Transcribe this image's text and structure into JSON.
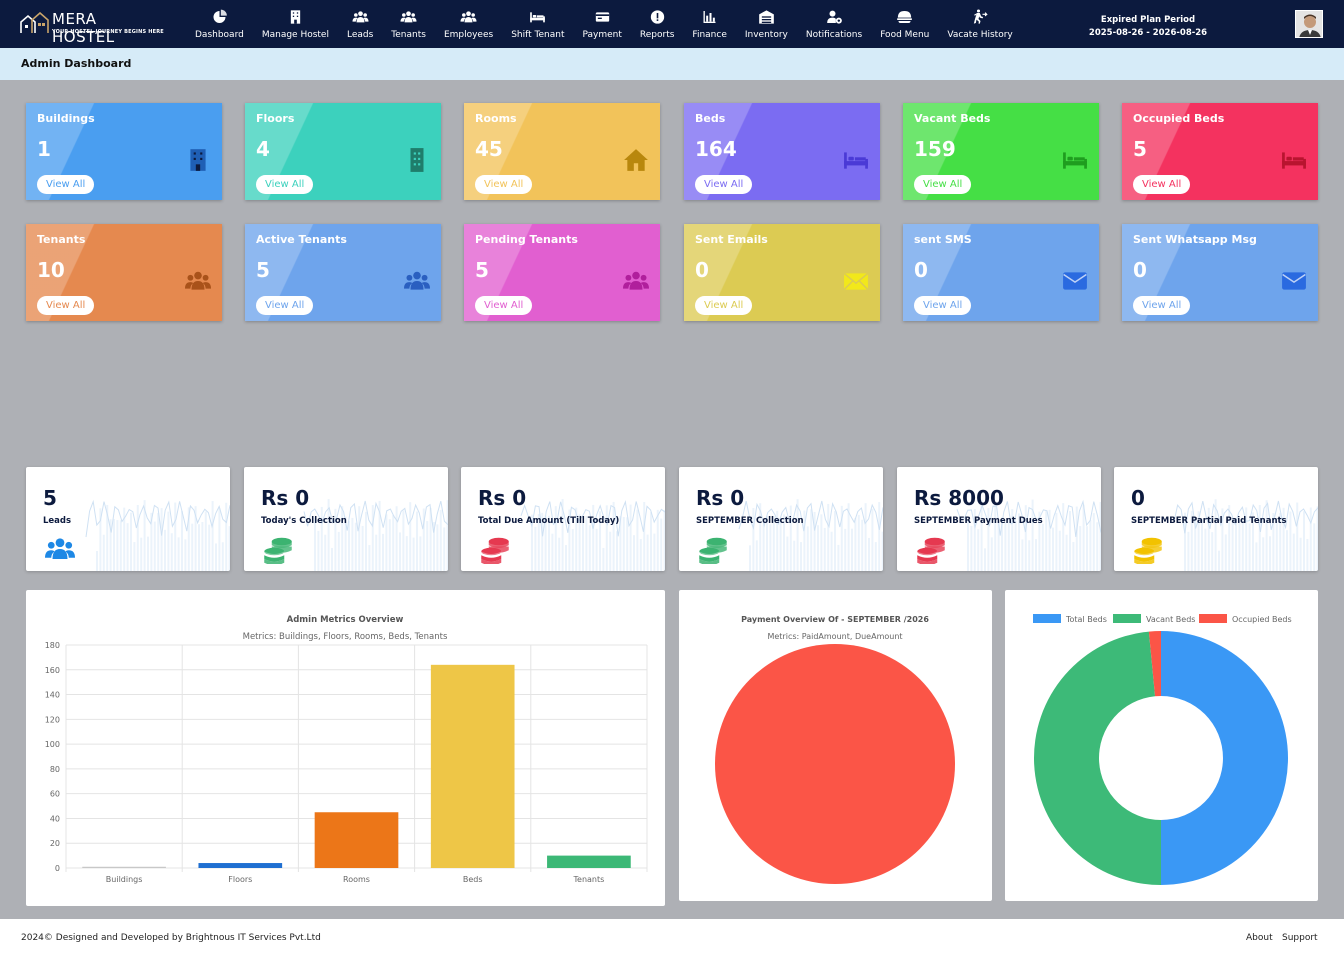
{
  "brand": {
    "name": "MERA HOSTEL",
    "tagline": "YOUR HOSTEL JOURNEY BEGINS HERE"
  },
  "nav": [
    {
      "label": "Dashboard",
      "icon": "dashboard-icon"
    },
    {
      "label": "Manage Hostel",
      "icon": "building-icon"
    },
    {
      "label": "Leads",
      "icon": "users-icon"
    },
    {
      "label": "Tenants",
      "icon": "users-icon"
    },
    {
      "label": "Employees",
      "icon": "users-icon"
    },
    {
      "label": "Shift Tenant",
      "icon": "bed-icon"
    },
    {
      "label": "Payment",
      "icon": "card-icon"
    },
    {
      "label": "Reports",
      "icon": "alert-icon"
    },
    {
      "label": "Finance",
      "icon": "bar-icon"
    },
    {
      "label": "Inventory",
      "icon": "warehouse-icon"
    },
    {
      "label": "Notifications",
      "icon": "user-gear-icon"
    },
    {
      "label": "Food Menu",
      "icon": "food-icon"
    },
    {
      "label": "Vacate History",
      "icon": "exit-icon"
    }
  ],
  "plan": {
    "label": "Expired Plan Period",
    "range": "2025-08-26 - 2026-08-26"
  },
  "page_title": "Admin Dashboard",
  "cards": [
    {
      "title": "Buildings",
      "value": "1",
      "button": "View All",
      "color": "#4a9ef0",
      "icon": "building-icon",
      "icon_color": "#1f5fb5"
    },
    {
      "title": "Floors",
      "value": "4",
      "button": "View All",
      "color": "#3cd1bd",
      "icon": "floor-icon",
      "icon_color": "#1f7d6b"
    },
    {
      "title": "Rooms",
      "value": "45",
      "button": "View All",
      "color": "#f2c35a",
      "icon": "home-icon",
      "icon_color": "#b8870d"
    },
    {
      "title": "Beds",
      "value": "164",
      "button": "View All",
      "color": "#7b6cf2",
      "icon": "bed-icon",
      "icon_color": "#4a3ad6"
    },
    {
      "title": "Vacant Beds",
      "value": "159",
      "button": "View All",
      "color": "#45df45",
      "icon": "bed-icon",
      "icon_color": "#1f9d1f"
    },
    {
      "title": "Occupied Beds",
      "value": "5",
      "button": "View All",
      "color": "#f4325f",
      "icon": "bed-icon",
      "icon_color": "#b8142f"
    },
    {
      "title": "Tenants",
      "value": "10",
      "button": "View All",
      "color": "#e5894f",
      "icon": "users-icon",
      "icon_color": "#a9521a"
    },
    {
      "title": "Active Tenants",
      "value": "5",
      "button": "View All",
      "color": "#6ea4ec",
      "icon": "users-icon",
      "icon_color": "#2a5fc0"
    },
    {
      "title": "Pending Tenants",
      "value": "5",
      "button": "View All",
      "color": "#e15fd0",
      "icon": "users-icon",
      "icon_color": "#b01f9c"
    },
    {
      "title": "Sent Emails",
      "value": "0",
      "button": "View All",
      "color": "#dccb53",
      "icon": "mail-open-icon",
      "icon_color": "#f2e81a"
    },
    {
      "title": "sent SMS",
      "value": "0",
      "button": "View All",
      "color": "#6ea4ec",
      "icon": "mail-icon",
      "icon_color": "#2a6ae0"
    },
    {
      "title": "Sent Whatsapp Msg",
      "value": "0",
      "button": "View All",
      "color": "#6ea4ec",
      "icon": "mail-icon",
      "icon_color": "#2a6ae0"
    }
  ],
  "summary": [
    {
      "value": "5",
      "label": "Leads",
      "icon": "users-icon",
      "icon_color": "#1e88e5"
    },
    {
      "value": "Rs 0",
      "label": "Today's Collection",
      "icon": "coins-icon",
      "icon_color": "#3cb371"
    },
    {
      "value": "Rs 0",
      "label": "Total Due Amount (Till Today)",
      "icon": "coins-icon",
      "icon_color": "#e53950"
    },
    {
      "value": "Rs 0",
      "label": "SEPTEMBER Collection",
      "icon": "coins-icon",
      "icon_color": "#3cb371"
    },
    {
      "value": "Rs 8000",
      "label": "SEPTEMBER Payment Dues",
      "icon": "coins-icon",
      "icon_color": "#e53950"
    },
    {
      "value": "0",
      "label": "SEPTEMBER Partial Paid Tenants",
      "icon": "coins-icon",
      "icon_color": "#f2c200"
    }
  ],
  "chart_data": [
    {
      "type": "bar",
      "title": "Admin Metrics Overview",
      "subtitle": "Metrics: Buildings, Floors, Rooms, Beds, Tenants",
      "categories": [
        "Buildings",
        "Floors",
        "Rooms",
        "Beds",
        "Tenants"
      ],
      "values": [
        1,
        4,
        45,
        164,
        10
      ],
      "colors": [
        "#c8c8c8",
        "#1f6fd1",
        "#ec7618",
        "#eec647",
        "#3cb876"
      ],
      "ylim": [
        0,
        180
      ],
      "yticks": [
        "0",
        "20",
        "40",
        "60",
        "80",
        "100",
        "120",
        "140",
        "160",
        "180"
      ],
      "grid": true
    },
    {
      "type": "pie",
      "title": "Payment Overview Of - SEPTEMBER /2026",
      "subtitle": "Metrics: PaidAmount, DueAmount",
      "categories": [
        "PaidAmount",
        "DueAmount"
      ],
      "values": [
        0,
        8000
      ],
      "colors": [
        "#3cb876",
        "#fb5547"
      ]
    },
    {
      "type": "pie",
      "donut": true,
      "legend": "top",
      "series": [
        {
          "name": "Total Beds",
          "value": 164,
          "color": "#3a98f5"
        },
        {
          "name": "Vacant Beds",
          "value": 159,
          "color": "#3dba78"
        },
        {
          "name": "Occupied Beds",
          "value": 5,
          "color": "#fb5547"
        }
      ]
    }
  ],
  "footer": {
    "copyright": "2024© Designed and Developed by Brightnous IT Services Pvt.Ltd",
    "about": "About",
    "support": "Support"
  }
}
